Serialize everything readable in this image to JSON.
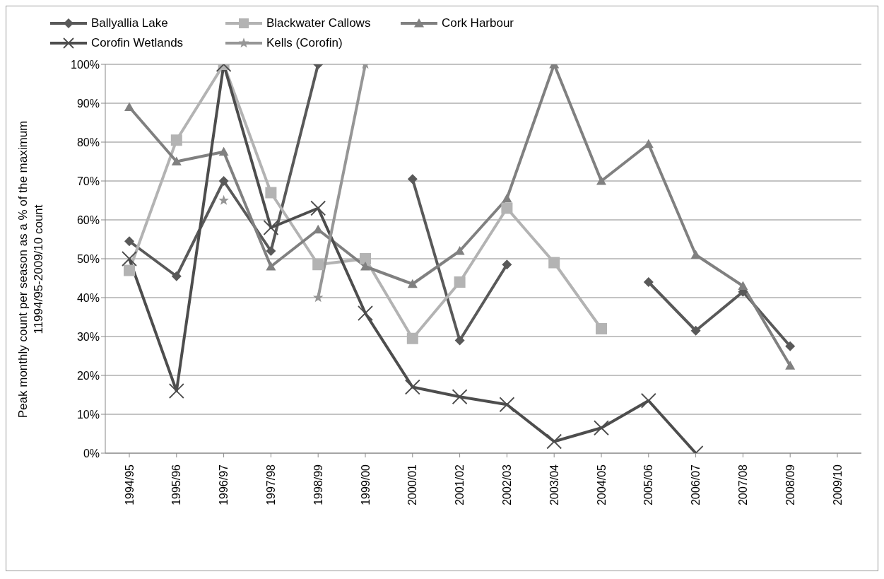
{
  "chart_data": {
    "type": "line",
    "ylabel": "Peak monthly count per season as a % of the maximum\n11994/95-2009/10 count",
    "categories": [
      "1994/95",
      "1995/96",
      "1996/97",
      "1997/98",
      "1998/99",
      "1999/00",
      "2000/01",
      "2001/02",
      "2002/03",
      "2003/04",
      "2004/05",
      "2005/06",
      "2006/07",
      "2007/08",
      "2008/09",
      "2009/10"
    ],
    "series": [
      {
        "name": "Ballyallia Lake",
        "color": "#595959",
        "marker": "diamond",
        "values": [
          54.5,
          45.5,
          70,
          52,
          100,
          null,
          70.5,
          29,
          48.5,
          null,
          null,
          44,
          31.5,
          41.5,
          27.5,
          null
        ]
      },
      {
        "name": "Blackwater Callows",
        "color": "#b3b3b3",
        "marker": "square",
        "values": [
          47,
          80.5,
          100,
          67,
          48.5,
          50,
          29.5,
          44,
          63,
          49,
          32,
          null,
          null,
          null,
          null,
          null
        ]
      },
      {
        "name": "Cork Harbour",
        "color": "#808080",
        "marker": "triangle",
        "values": [
          89,
          75,
          77.5,
          48,
          57.5,
          48,
          43.5,
          52,
          65.5,
          100,
          70,
          79.5,
          51,
          43,
          22.5,
          null
        ]
      },
      {
        "name": "Corofin Wetlands",
        "color": "#4d4d4d",
        "marker": "cross",
        "values": [
          50,
          16,
          100,
          58,
          63,
          36,
          17,
          14.5,
          12.5,
          3,
          6.5,
          13.5,
          0,
          null,
          null,
          null
        ]
      },
      {
        "name": "Kells (Corofin)",
        "color": "#969696",
        "marker": "star",
        "values": [
          null,
          null,
          65,
          null,
          40,
          100,
          null,
          null,
          null,
          null,
          null,
          null,
          null,
          null,
          null,
          null
        ]
      }
    ],
    "ylim": [
      0,
      100
    ],
    "yticks": [
      {
        "value": 0,
        "label": "0%"
      },
      {
        "value": 10,
        "label": "10%"
      },
      {
        "value": 20,
        "label": "20%"
      },
      {
        "value": 30,
        "label": "30%"
      },
      {
        "value": 40,
        "label": "40%"
      },
      {
        "value": 50,
        "label": "50%"
      },
      {
        "value": 60,
        "label": "60%"
      },
      {
        "value": 70,
        "label": "70%"
      },
      {
        "value": 80,
        "label": "80%"
      },
      {
        "value": 90,
        "label": "90%"
      },
      {
        "value": 100,
        "label": "100%"
      }
    ],
    "grid": "y",
    "legend": "top",
    "line_style": "solid"
  }
}
